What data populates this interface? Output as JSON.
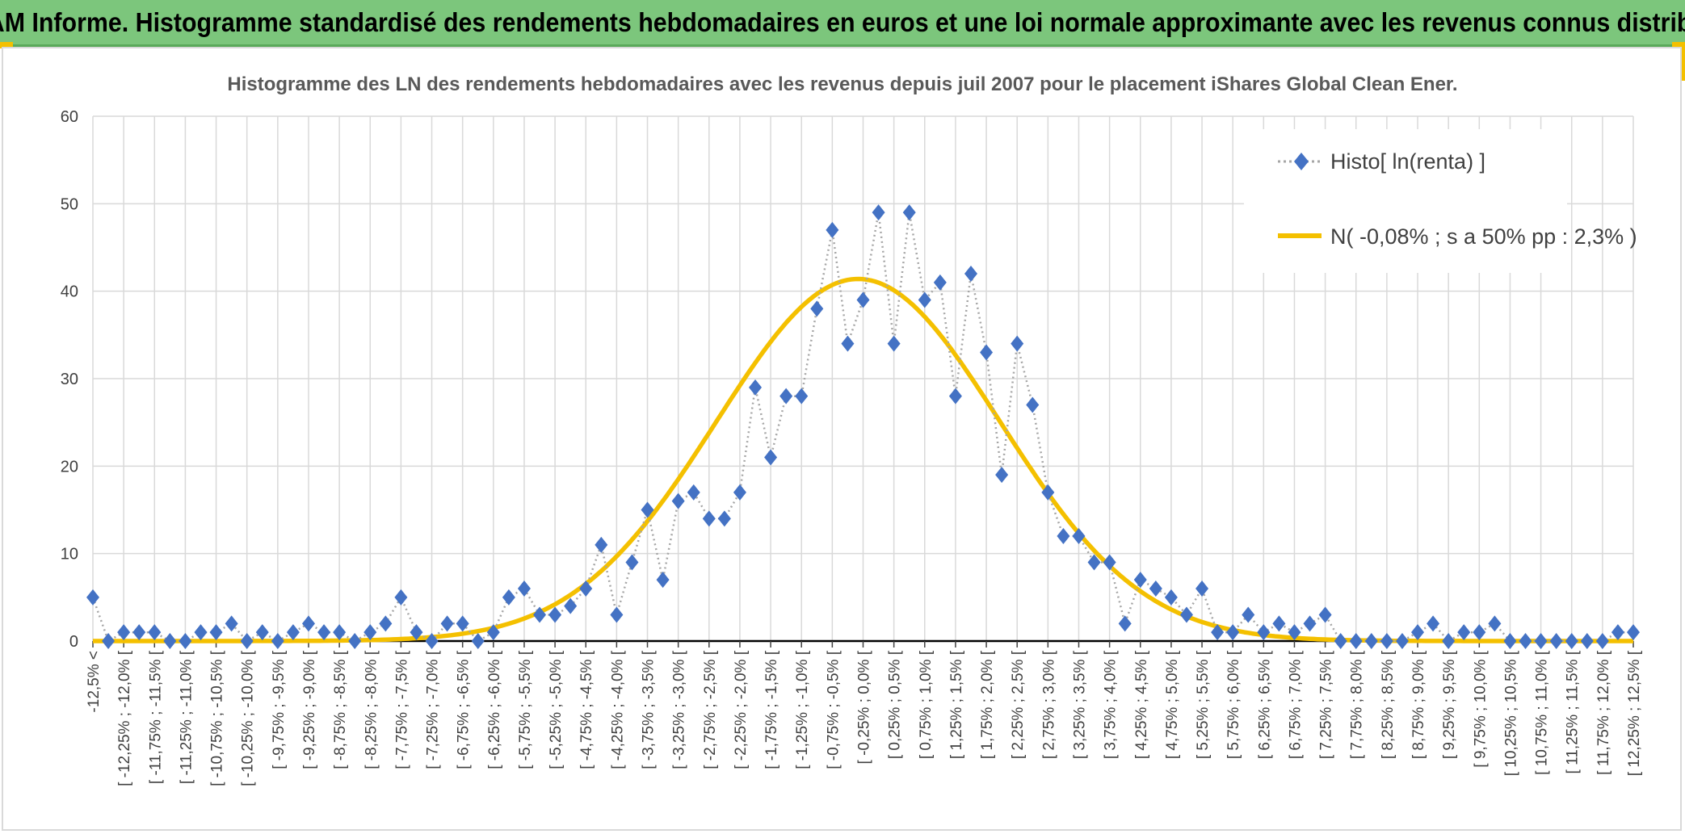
{
  "header": {
    "title": "ADAM Informe. Histogramme standardisé des rendements hebdomadaires en euros et une loi normale approximante avec les revenus connus distribués"
  },
  "colors": {
    "header_bg": "#7cc67c",
    "accent": "#f4c000",
    "histo_marker": "#4472c4",
    "histo_line": "#a6a6a6",
    "normal_curve": "#f4c000",
    "grid": "#d9d9d9"
  },
  "chart_data": {
    "type": "line",
    "title": "Histogramme des LN des rendements hebdomadaires avec les revenus depuis juil 2007 pour le placement iShares Global Clean Ener.",
    "xlabel": "",
    "ylabel": "",
    "ylim": [
      0,
      60
    ],
    "yticks": [
      "0",
      "10",
      "20",
      "30",
      "40",
      "50",
      "60"
    ],
    "grid": true,
    "legend_position": "top-right",
    "categories": [
      "-12,5% <",
      "[ -12,25% ; -12,0% [",
      "[ -11,75% ; -11,5% [",
      "[ -11,25% ; -11,0% [",
      "[ -10,75% ; -10,5% [",
      "[ -10,25% ; -10,0% [",
      "[ -9,75% ; -9,5% [",
      "[ -9,25% ; -9,0% [",
      "[ -8,75% ; -8,5% [",
      "[ -8,25% ; -8,0% [",
      "[ -7,75% ; -7,5% [",
      "[ -7,25% ; -7,0% [",
      "[ -6,75% ; -6,5% [",
      "[ -6,25% ; -6,0% [",
      "[ -5,75% ; -5,5% [",
      "[ -5,25% ; -5,0% [",
      "[ -4,75% ; -4,5% [",
      "[ -4,25% ; -4,0% [",
      "[ -3,75% ; -3,5% [",
      "[ -3,25% ; -3,0% [",
      "[ -2,75% ; -2,5% [",
      "[ -2,25% ; -2,0% [",
      "[ -1,75% ; -1,5% [",
      "[ -1,25% ; -1,0% [",
      "[ -0,75% ; -0,5% [",
      "[ -0,25% ; 0,0% [",
      "[ 0,25% ; 0,5% [",
      "[ 0,75% ; 1,0% [",
      "[ 1,25% ; 1,5% [",
      "[ 1,75% ; 2,0% [",
      "[ 2,25% ; 2,5% [",
      "[ 2,75% ; 3,0% [",
      "[ 3,25% ; 3,5% [",
      "[ 3,75% ; 4,0% [",
      "[ 4,25% ; 4,5% [",
      "[ 4,75% ; 5,0% [",
      "[ 5,25% ; 5,5% [",
      "[ 5,75% ; 6,0% [",
      "[ 6,25% ; 6,5% [",
      "[ 6,75% ; 7,0% [",
      "[ 7,25% ; 7,5% [",
      "[ 7,75% ; 8,0% [",
      "[ 8,25% ; 8,5% [",
      "[ 8,75% ; 9,0% [",
      "[ 9,25% ; 9,5% [",
      "[ 9,75% ; 10,0% [",
      "[ 10,25% ; 10,5% [",
      "[ 10,75% ; 11,0% [",
      "[ 11,25% ; 11,5% [",
      "[ 11,75% ; 12,0% [",
      "[ 12,25% ; 12,5% ["
    ],
    "x": [
      -12.5,
      -12.25,
      -12.0,
      -11.75,
      -11.5,
      -11.25,
      -11.0,
      -10.75,
      -10.5,
      -10.25,
      -10.0,
      -9.75,
      -9.5,
      -9.25,
      -9.0,
      -8.75,
      -8.5,
      -8.25,
      -8.0,
      -7.75,
      -7.5,
      -7.25,
      -7.0,
      -6.75,
      -6.5,
      -6.25,
      -6.0,
      -5.75,
      -5.5,
      -5.25,
      -5.0,
      -4.75,
      -4.5,
      -4.25,
      -4.0,
      -3.75,
      -3.5,
      -3.25,
      -3.0,
      -2.75,
      -2.5,
      -2.25,
      -2.0,
      -1.75,
      -1.5,
      -1.25,
      -1.0,
      -0.75,
      -0.5,
      -0.25,
      0.0,
      0.25,
      0.5,
      0.75,
      1.0,
      1.25,
      1.5,
      1.75,
      2.0,
      2.25,
      2.5,
      2.75,
      3.0,
      3.25,
      3.5,
      3.75,
      4.0,
      4.25,
      4.5,
      4.75,
      5.0,
      5.25,
      5.5,
      5.75,
      6.0,
      6.25,
      6.5,
      6.75,
      7.0,
      7.25,
      7.5,
      7.75,
      8.0,
      8.25,
      8.5,
      8.75,
      9.0,
      9.25,
      9.5,
      9.75,
      10.0,
      10.25,
      10.5,
      10.75,
      11.0,
      11.25,
      11.5,
      11.75,
      12.0,
      12.25,
      12.5
    ],
    "series": [
      {
        "name": "Histo[ ln(renta) ]",
        "values": [
          5,
          0,
          1,
          1,
          1,
          0,
          0,
          1,
          1,
          2,
          0,
          1,
          0,
          1,
          2,
          1,
          1,
          0,
          1,
          2,
          5,
          1,
          0,
          2,
          2,
          0,
          1,
          5,
          6,
          3,
          3,
          4,
          6,
          11,
          3,
          9,
          15,
          7,
          16,
          17,
          14,
          14,
          17,
          29,
          21,
          28,
          28,
          38,
          47,
          34,
          39,
          49,
          34,
          49,
          39,
          41,
          28,
          42,
          33,
          19,
          34,
          27,
          17,
          12,
          12,
          9,
          9,
          2,
          7,
          6,
          5,
          3,
          6,
          1,
          1,
          3,
          1,
          2,
          1,
          2,
          3,
          0,
          0,
          0,
          0,
          0,
          1,
          2,
          0,
          1,
          1,
          2,
          0,
          0,
          0,
          0,
          0,
          0,
          0,
          1,
          1
        ]
      },
      {
        "name": "N( -0,08% ; s a 50% pp : 2,3% )",
        "mean": -0.08,
        "sd": 2.3,
        "peak": 41.4
      }
    ]
  }
}
